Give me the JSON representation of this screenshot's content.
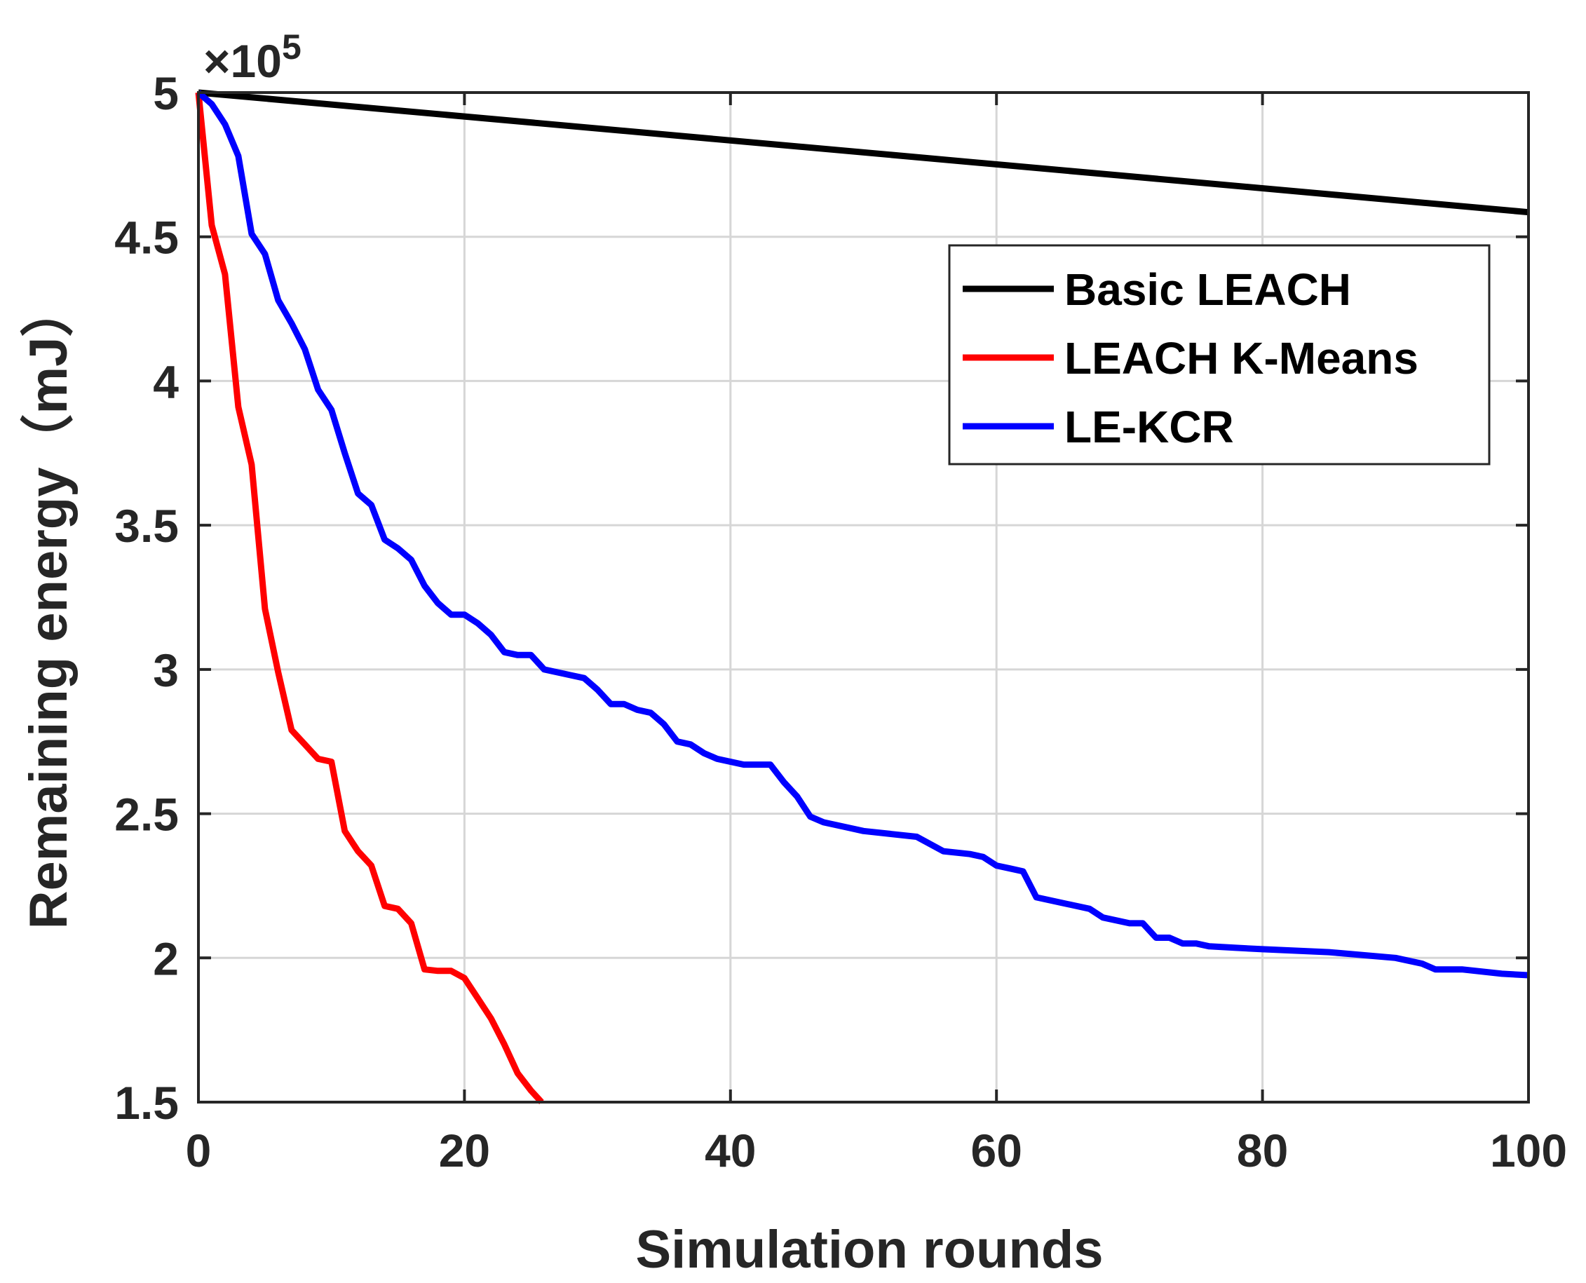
{
  "chart_data": {
    "type": "line",
    "title": "",
    "xlabel": "Simulation rounds",
    "ylabel": "Remaining energy（mJ）",
    "exponent_label": "×10^5",
    "xlim": [
      0,
      100
    ],
    "ylim": [
      1.5,
      5
    ],
    "xticks": [
      0,
      20,
      40,
      60,
      80,
      100
    ],
    "xtick_labels": [
      "0",
      "20",
      "40",
      "60",
      "80",
      "100"
    ],
    "yticks": [
      1.5,
      2,
      2.5,
      3,
      3.5,
      4,
      4.5,
      5
    ],
    "ytick_labels": [
      "1.5",
      "2",
      "2.5",
      "3",
      "3.5",
      "4",
      "4.5",
      "5"
    ],
    "grid": true,
    "legend_position": "top-right",
    "series": [
      {
        "name": "Basic LEACH",
        "color": "#000000",
        "x": [
          0,
          100
        ],
        "y": [
          5.0,
          4.585
        ]
      },
      {
        "name": "LEACH K-Means",
        "color": "#ff0000",
        "x": [
          0,
          1,
          2,
          3,
          4,
          5,
          6,
          7,
          8,
          9,
          10,
          11,
          12,
          13,
          14,
          15,
          16,
          17,
          18,
          19,
          20,
          21,
          22,
          23,
          24,
          25,
          25.8
        ],
        "y": [
          5.0,
          4.54,
          4.37,
          3.91,
          3.71,
          3.21,
          2.99,
          2.79,
          2.74,
          2.69,
          2.68,
          2.44,
          2.37,
          2.32,
          2.18,
          2.17,
          2.12,
          1.96,
          1.955,
          1.955,
          1.93,
          1.86,
          1.79,
          1.7,
          1.6,
          1.54,
          1.5
        ]
      },
      {
        "name": "LE-KCR",
        "color": "#0000ff",
        "x": [
          0,
          1,
          2,
          3,
          4,
          5,
          6,
          7,
          8,
          9,
          10,
          11,
          12,
          13,
          14,
          15,
          16,
          17,
          18,
          19,
          20,
          21,
          22,
          23,
          24,
          25,
          26,
          27,
          28,
          29,
          30,
          31,
          32,
          33,
          34,
          35,
          36,
          37,
          38,
          39,
          40,
          41,
          42,
          43,
          44,
          45,
          46,
          47,
          48,
          49,
          50,
          52,
          54,
          56,
          58,
          59,
          60,
          61,
          62,
          63,
          65,
          67,
          68,
          70,
          71,
          72,
          73,
          74,
          75,
          76,
          78,
          80,
          85,
          90,
          92,
          93,
          95,
          98,
          100
        ],
        "y": [
          5.0,
          4.96,
          4.89,
          4.78,
          4.51,
          4.44,
          4.28,
          4.2,
          4.11,
          3.97,
          3.9,
          3.75,
          3.61,
          3.57,
          3.45,
          3.42,
          3.38,
          3.29,
          3.23,
          3.19,
          3.19,
          3.16,
          3.12,
          3.06,
          3.05,
          3.05,
          3.0,
          2.99,
          2.98,
          2.97,
          2.93,
          2.88,
          2.88,
          2.86,
          2.85,
          2.81,
          2.75,
          2.74,
          2.71,
          2.69,
          2.68,
          2.67,
          2.67,
          2.67,
          2.61,
          2.56,
          2.49,
          2.47,
          2.46,
          2.45,
          2.44,
          2.43,
          2.42,
          2.37,
          2.36,
          2.35,
          2.32,
          2.31,
          2.3,
          2.21,
          2.19,
          2.17,
          2.14,
          2.12,
          2.12,
          2.07,
          2.07,
          2.05,
          2.05,
          2.04,
          2.035,
          2.03,
          2.02,
          2.0,
          1.98,
          1.96,
          1.96,
          1.945,
          1.94
        ]
      }
    ]
  }
}
